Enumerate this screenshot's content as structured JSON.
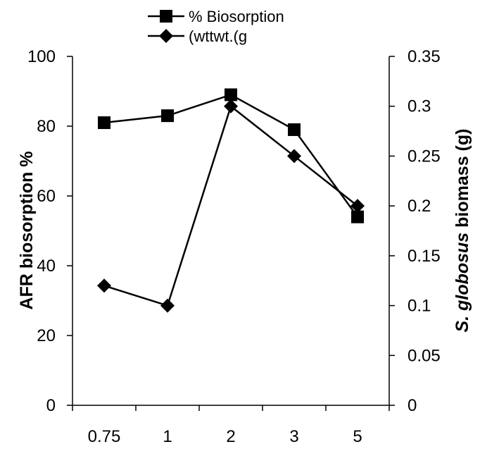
{
  "chart_data": {
    "type": "line",
    "categories": [
      "0.75",
      "1",
      "2",
      "3",
      "5"
    ],
    "ylabel": "AFR biosorption %",
    "y2label": {
      "italic": "S. globosus",
      "rest": " biomass (g)"
    },
    "ylim": [
      0,
      100
    ],
    "y2lim": [
      0,
      0.35
    ],
    "yticks": [
      "0",
      "20",
      "40",
      "60",
      "80",
      "100"
    ],
    "y2ticks": [
      "0",
      "0.05",
      "0.1",
      "0.15",
      "0.2",
      "0.25",
      "0.3",
      "0.35"
    ],
    "grid": false,
    "legend_position": "top-center",
    "series": [
      {
        "name": "% Biosorption",
        "axis": "left",
        "marker": "square",
        "values": [
          81,
          83,
          89,
          79,
          54
        ]
      },
      {
        "name": "(wttwt.(g",
        "axis": "right",
        "marker": "diamond",
        "values": [
          0.12,
          0.1,
          0.3,
          0.25,
          0.2
        ]
      }
    ]
  }
}
